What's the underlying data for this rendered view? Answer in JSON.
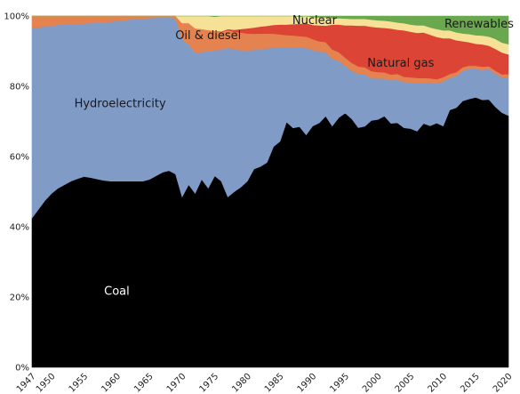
{
  "chart_data": {
    "type": "area",
    "stacked": true,
    "x": [
      1947,
      1948,
      1949,
      1950,
      1951,
      1952,
      1953,
      1954,
      1955,
      1956,
      1957,
      1958,
      1959,
      1960,
      1961,
      1962,
      1963,
      1964,
      1965,
      1966,
      1967,
      1968,
      1969,
      1970,
      1971,
      1972,
      1973,
      1974,
      1975,
      1976,
      1977,
      1978,
      1979,
      1980,
      1981,
      1982,
      1983,
      1984,
      1985,
      1986,
      1987,
      1988,
      1989,
      1990,
      1991,
      1992,
      1993,
      1994,
      1995,
      1996,
      1997,
      1998,
      1999,
      2000,
      2001,
      2002,
      2003,
      2004,
      2005,
      2006,
      2007,
      2008,
      2009,
      2010,
      2011,
      2012,
      2013,
      2014,
      2015,
      2016,
      2017,
      2018,
      2019,
      2020
    ],
    "x_tick_labels": [
      "1947",
      "1950",
      "1955",
      "1960",
      "1965",
      "1970",
      "1975",
      "1980",
      "1985",
      "1990",
      "1995",
      "2000",
      "2005",
      "2010",
      "2015",
      "2020"
    ],
    "y_tick_labels": [
      "0%",
      "20%",
      "40%",
      "60%",
      "80%",
      "100%"
    ],
    "ylim": [
      0,
      100
    ],
    "series": [
      {
        "name": "Coal",
        "color": "#000000",
        "values": [
          42.5,
          45,
          47.5,
          49.5,
          51,
          52,
          53,
          53.7,
          54.3,
          54,
          53.6,
          53.2,
          53,
          53,
          53,
          53,
          53,
          53,
          53.5,
          54.5,
          55.5,
          56,
          55,
          48.5,
          52,
          49.5,
          53.5,
          51,
          54.5,
          53,
          48.5,
          50,
          51.3,
          53,
          57,
          57.5,
          58.3,
          62.5,
          64,
          69.5,
          67.8,
          68.5,
          65.5,
          68,
          68.5,
          70.5,
          68,
          70.5,
          71,
          69.5,
          67,
          67.3,
          69,
          69.5,
          70,
          68,
          68,
          67,
          67,
          66,
          68.5,
          67.5,
          68,
          67.5,
          72,
          73,
          75,
          75.8,
          76,
          75.5,
          75.8,
          74,
          72,
          71.5
        ]
      },
      {
        "name": "Hydroelectricity",
        "color": "#819bc7",
        "values": [
          54.3,
          51.8,
          49.5,
          47.7,
          46.5,
          45.6,
          44.7,
          44.1,
          43.6,
          44,
          44.5,
          45,
          45.4,
          45.6,
          45.8,
          46,
          46.2,
          46.3,
          45.9,
          45,
          44.1,
          43.7,
          44.2,
          45,
          40,
          40,
          36.3,
          39,
          35.8,
          37.4,
          42.5,
          40.5,
          39,
          37.2,
          34.3,
          33.7,
          32.5,
          28,
          26.5,
          21,
          22.7,
          22.5,
          24.5,
          21.5,
          20,
          18,
          19,
          16,
          13.2,
          13.5,
          15,
          14.5,
          11.8,
          11.5,
          10.5,
          12,
          12,
          12.8,
          13,
          13.5,
          11.5,
          12,
          11,
          12.5,
          9,
          9,
          8.5,
          8.5,
          8,
          8.5,
          8.6,
          9.5,
          10,
          11
        ]
      },
      {
        "name": "Oil & diesel",
        "color": "#e4834f",
        "values": [
          3.2,
          3.2,
          3,
          2.8,
          2.5,
          2.4,
          2.3,
          2.2,
          2.1,
          2,
          1.9,
          1.8,
          1.6,
          1.4,
          1.2,
          1.0,
          0.8,
          0.7,
          0.6,
          0.5,
          0.4,
          0.3,
          0.8,
          4.5,
          6,
          7,
          6.5,
          6,
          5.5,
          5,
          5,
          5,
          5,
          4.8,
          4.6,
          4.4,
          4.2,
          4,
          3.8,
          3.6,
          3.5,
          3.3,
          3.2,
          3,
          2.9,
          2.8,
          2.6,
          2.5,
          2.3,
          2.2,
          2.1,
          2,
          2,
          1.8,
          1.7,
          1.6,
          1.6,
          1.5,
          1.4,
          1.4,
          1.3,
          1.3,
          1.2,
          1.2,
          1.1,
          1,
          1,
          0.9,
          0.9,
          0.9,
          0.8,
          0.8,
          0.8,
          0.8
        ]
      },
      {
        "name": "Natural gas",
        "color": "#dc4535",
        "values": [
          0,
          0,
          0,
          0,
          0,
          0,
          0,
          0,
          0,
          0,
          0,
          0,
          0,
          0,
          0,
          0,
          0,
          0,
          0,
          0,
          0,
          0,
          0,
          0,
          0,
          0,
          0,
          0,
          0,
          0.2,
          0.3,
          0.6,
          1,
          1.5,
          1.8,
          2,
          2.2,
          2.5,
          2.8,
          3,
          3.2,
          3.5,
          3.8,
          4,
          4.5,
          4.6,
          7,
          7.8,
          9,
          10.5,
          11.4,
          11.6,
          12.4,
          12.5,
          12.4,
          12.8,
          12.3,
          13,
          12.8,
          12.6,
          12.8,
          12.2,
          11.8,
          10.9,
          10,
          9,
          7.3,
          6.6,
          6.2,
          6.3,
          5.8,
          6.2,
          6.2,
          5.6
        ]
      },
      {
        "name": "Nuclear",
        "color": "#f6e197",
        "values": [
          0,
          0,
          0,
          0,
          0,
          0,
          0,
          0,
          0,
          0,
          0,
          0,
          0,
          0,
          0,
          0,
          0,
          0,
          0,
          0,
          0,
          0,
          0,
          2,
          2,
          3.5,
          3.7,
          4,
          4,
          4.4,
          3.7,
          3.9,
          3.7,
          3.5,
          3.3,
          3,
          2.8,
          2.5,
          2.4,
          2.4,
          2.3,
          2,
          2,
          2.2,
          2.2,
          2.3,
          1.8,
          1.8,
          1.9,
          1.8,
          1.9,
          1.9,
          2,
          2,
          2,
          2,
          2,
          2,
          2,
          2.1,
          2,
          2,
          2.2,
          2.2,
          2.2,
          2.2,
          2.2,
          2.3,
          2.4,
          2.5,
          2.6,
          2.8,
          2.8,
          2.9
        ]
      },
      {
        "name": "Renewables",
        "color": "#6aa84f",
        "values": [
          0,
          0,
          0,
          0,
          0,
          0,
          0,
          0,
          0,
          0,
          0,
          0,
          0,
          0,
          0,
          0,
          0,
          0,
          0,
          0,
          0,
          0,
          0,
          0,
          0,
          0,
          0,
          0,
          0.2,
          0,
          0,
          0,
          0,
          0,
          0,
          0,
          0,
          0,
          0,
          0,
          0,
          0.2,
          0,
          0.3,
          0.4,
          0.4,
          0.6,
          0.6,
          0.7,
          0.8,
          0.8,
          0.8,
          1,
          1.2,
          1.3,
          1.5,
          1.8,
          2,
          2.4,
          2.6,
          2.6,
          3.2,
          3.6,
          4,
          4,
          4.6,
          4.9,
          5.1,
          5.4,
          5.5,
          5.8,
          6.5,
          7.5,
          8
        ]
      }
    ],
    "labels": [
      {
        "text": "Coal",
        "series": "Coal",
        "x": 1960,
        "y": 21.5,
        "style": "light"
      },
      {
        "text": "Hydroelectricity",
        "series": "Hydroelectricity",
        "x": 1960.5,
        "y": 75,
        "style": "dark"
      },
      {
        "text": "Oil & diesel",
        "series": "Oil & diesel",
        "x": 1974,
        "y": 94.3,
        "style": "dark"
      },
      {
        "text": "Natural gas",
        "series": "Natural gas",
        "x": 2003.5,
        "y": 86.5,
        "style": "dark"
      },
      {
        "text": "Nuclear",
        "series": "Nuclear",
        "x": 1990.3,
        "y": 98.6,
        "style": "dark"
      },
      {
        "text": "Renewables",
        "series": "Renewables",
        "x": 2015.5,
        "y": 97.6,
        "style": "dark"
      }
    ],
    "grid": false,
    "legend": "none (labels placed inside areas)"
  }
}
